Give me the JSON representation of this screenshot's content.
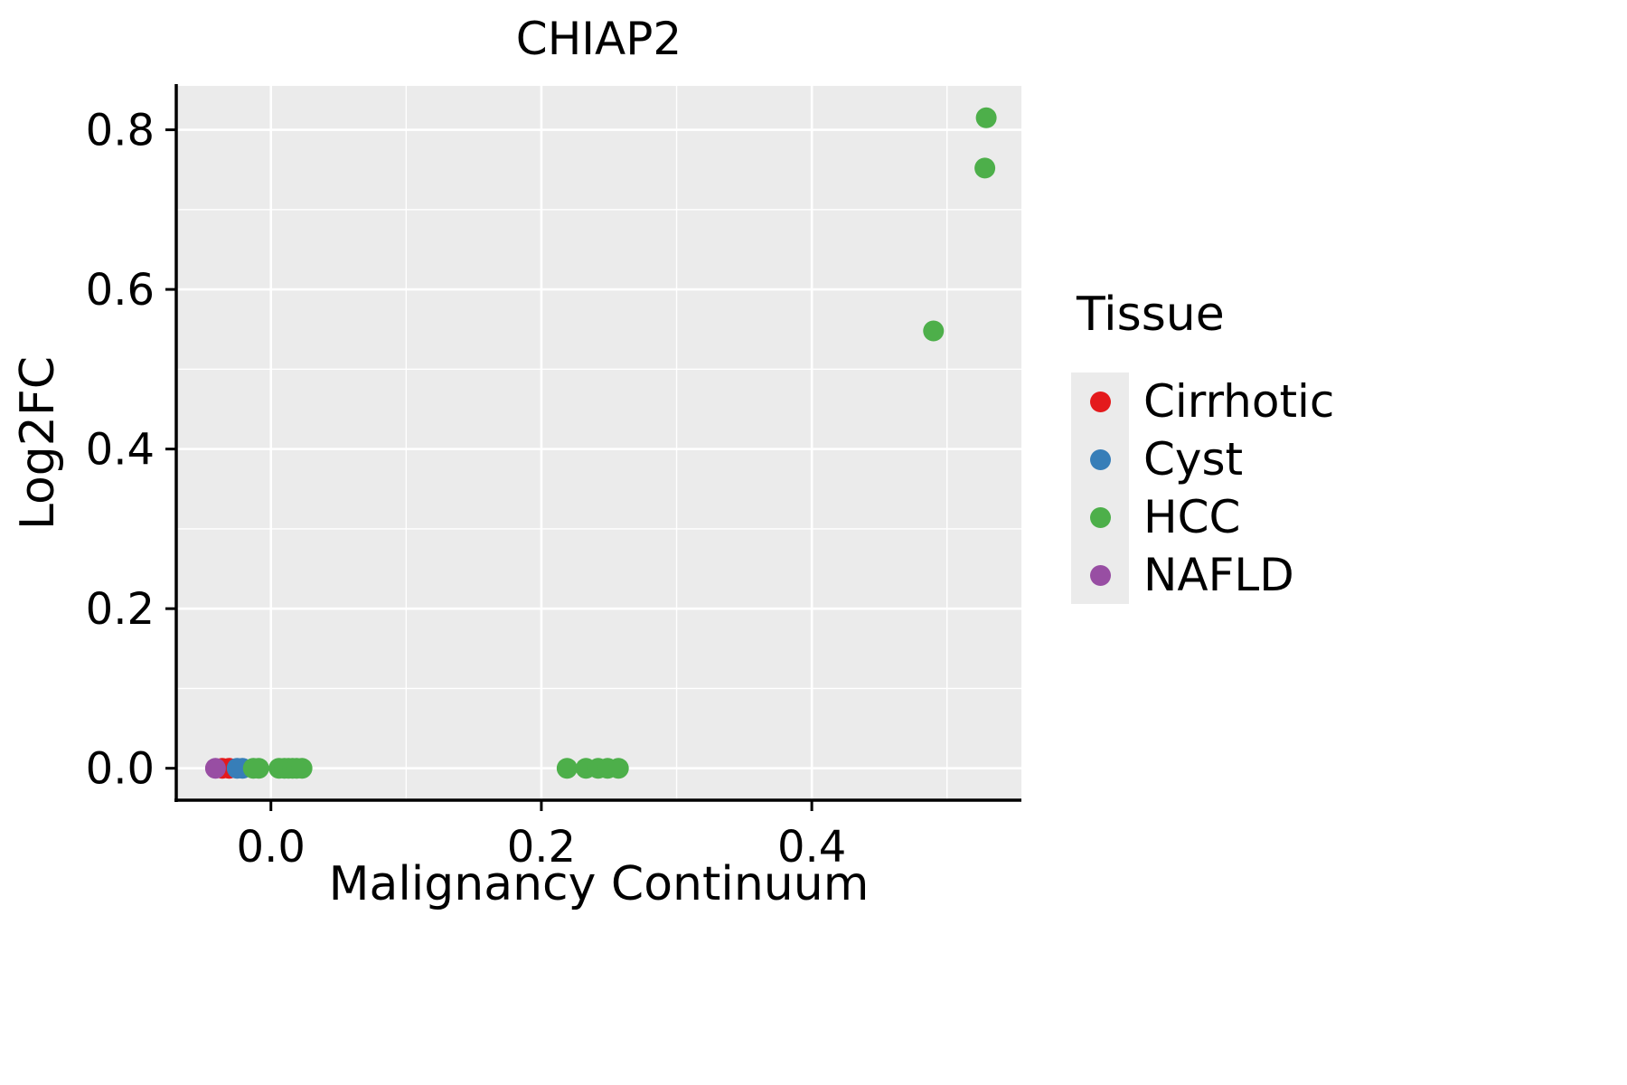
{
  "chart_data": {
    "type": "scatter",
    "title": "CHIAP2",
    "xlabel": "Malignancy Continuum",
    "ylabel": "Log2FC",
    "xlim": [
      -0.07,
      0.555
    ],
    "ylim": [
      -0.04,
      0.855
    ],
    "xticks": [
      0.0,
      0.2,
      0.4
    ],
    "yticks": [
      0.0,
      0.2,
      0.4,
      0.6,
      0.8
    ],
    "x_minor_ticks": [
      -0.1,
      0.1,
      0.3,
      0.5
    ],
    "y_minor_ticks": [
      0.1,
      0.3,
      0.5,
      0.7
    ],
    "grid": true,
    "panel_background": "#EBEBEB",
    "grid_color": "#FFFFFF",
    "legend": {
      "title": "Tissue",
      "position": "right"
    },
    "series": [
      {
        "name": "Cirrhotic",
        "color": "#E41A1C",
        "points": [
          [
            -0.036,
            0.0
          ],
          [
            -0.031,
            0.0
          ]
        ]
      },
      {
        "name": "Cyst",
        "color": "#377EB8",
        "points": [
          [
            -0.025,
            0.0
          ],
          [
            -0.021,
            0.0
          ]
        ]
      },
      {
        "name": "HCC",
        "color": "#4DAF4A",
        "points": [
          [
            -0.013,
            0.0
          ],
          [
            -0.009,
            0.0
          ],
          [
            0.006,
            0.0
          ],
          [
            0.01,
            0.0
          ],
          [
            0.013,
            0.0
          ],
          [
            0.016,
            0.0
          ],
          [
            0.019,
            0.0
          ],
          [
            0.023,
            0.0
          ],
          [
            0.219,
            0.0
          ],
          [
            0.233,
            0.0
          ],
          [
            0.242,
            0.0
          ],
          [
            0.249,
            0.0
          ],
          [
            0.257,
            0.0
          ],
          [
            0.49,
            0.548
          ],
          [
            0.528,
            0.752
          ],
          [
            0.529,
            0.815
          ]
        ]
      },
      {
        "name": "NAFLD",
        "color": "#984EA3",
        "points": [
          [
            -0.041,
            0.0
          ]
        ]
      }
    ]
  },
  "layout_labels": {
    "note": ""
  }
}
